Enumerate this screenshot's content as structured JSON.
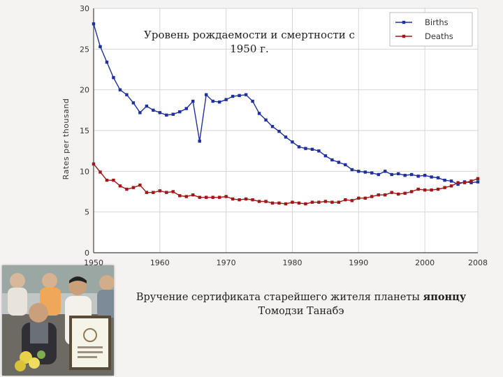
{
  "slide": {
    "overlay_title": "Уровень рождаемости и смертности с 1950 г.",
    "caption_before": "Вручение сертификата старейшего жителя планеты ",
    "caption_bold": "японцу",
    "caption_after": " Томодзи Танабэ",
    "photo_desc": "photo-award-ceremony"
  },
  "colors": {
    "births": "#1f2f9e",
    "deaths": "#a11616",
    "grid": "#d6d6d6",
    "axis": "#444444"
  },
  "chart_data": {
    "type": "line",
    "ylabel": "Rates per thousand",
    "xlabel": "",
    "xlim": [
      1950,
      2008
    ],
    "ylim": [
      0,
      30
    ],
    "xticks": [
      1950,
      1960,
      1970,
      1980,
      1990,
      2000,
      2008
    ],
    "yticks": [
      0,
      5,
      10,
      15,
      20,
      25,
      30
    ],
    "grid": true,
    "legend_position": "top-right",
    "series": [
      {
        "name": "Births",
        "x": [
          1950,
          1951,
          1952,
          1953,
          1954,
          1955,
          1956,
          1957,
          1958,
          1959,
          1960,
          1961,
          1962,
          1963,
          1964,
          1965,
          1966,
          1967,
          1968,
          1969,
          1970,
          1971,
          1972,
          1973,
          1974,
          1975,
          1976,
          1977,
          1978,
          1979,
          1980,
          1981,
          1982,
          1983,
          1984,
          1985,
          1986,
          1987,
          1988,
          1989,
          1990,
          1991,
          1992,
          1993,
          1994,
          1995,
          1996,
          1997,
          1998,
          1999,
          2000,
          2001,
          2002,
          2003,
          2004,
          2005,
          2006,
          2007,
          2008
        ],
        "values": [
          28.1,
          25.3,
          23.4,
          21.5,
          20.0,
          19.4,
          18.4,
          17.2,
          18.0,
          17.5,
          17.2,
          16.9,
          17.0,
          17.3,
          17.7,
          18.6,
          13.7,
          19.4,
          18.6,
          18.5,
          18.8,
          19.2,
          19.3,
          19.4,
          18.6,
          17.1,
          16.3,
          15.5,
          14.9,
          14.2,
          13.6,
          13.0,
          12.8,
          12.7,
          12.5,
          11.9,
          11.4,
          11.1,
          10.8,
          10.2,
          10.0,
          9.9,
          9.8,
          9.6,
          10.0,
          9.6,
          9.7,
          9.5,
          9.6,
          9.4,
          9.5,
          9.3,
          9.2,
          8.9,
          8.8,
          8.4,
          8.7,
          8.6,
          8.7
        ]
      },
      {
        "name": "Deaths",
        "x": [
          1950,
          1951,
          1952,
          1953,
          1954,
          1955,
          1956,
          1957,
          1958,
          1959,
          1960,
          1961,
          1962,
          1963,
          1964,
          1965,
          1966,
          1967,
          1968,
          1969,
          1970,
          1971,
          1972,
          1973,
          1974,
          1975,
          1976,
          1977,
          1978,
          1979,
          1980,
          1981,
          1982,
          1983,
          1984,
          1985,
          1986,
          1987,
          1988,
          1989,
          1990,
          1991,
          1992,
          1993,
          1994,
          1995,
          1996,
          1997,
          1998,
          1999,
          2000,
          2001,
          2002,
          2003,
          2004,
          2005,
          2006,
          2007,
          2008
        ],
        "values": [
          10.9,
          9.9,
          8.9,
          8.9,
          8.2,
          7.8,
          8.0,
          8.3,
          7.4,
          7.4,
          7.6,
          7.4,
          7.5,
          7.0,
          6.9,
          7.1,
          6.8,
          6.8,
          6.8,
          6.8,
          6.9,
          6.6,
          6.5,
          6.6,
          6.5,
          6.3,
          6.3,
          6.1,
          6.1,
          6.0,
          6.2,
          6.1,
          6.0,
          6.2,
          6.2,
          6.3,
          6.2,
          6.2,
          6.5,
          6.4,
          6.7,
          6.7,
          6.9,
          7.1,
          7.1,
          7.4,
          7.2,
          7.3,
          7.5,
          7.8,
          7.7,
          7.7,
          7.8,
          8.0,
          8.2,
          8.6,
          8.6,
          8.8,
          9.1
        ]
      }
    ]
  }
}
